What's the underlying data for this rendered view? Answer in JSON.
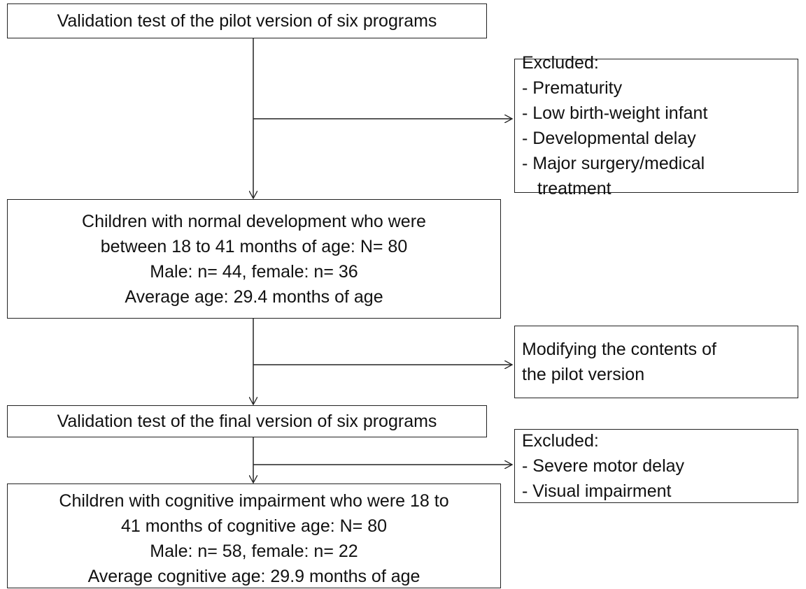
{
  "nodes": [
    {
      "lines": [
        "Validation test of the pilot version of six programs"
      ]
    },
    {
      "lines": [
        "Excluded:",
        "- Prematurity",
        "- Low birth-weight infant",
        "- Developmental delay",
        "- Major surgery/medical",
        "treatment"
      ]
    },
    {
      "lines": [
        "Children with normal development who were",
        "between 18 to 41 months of age: N= 80",
        "Male: n= 44, female: n= 36",
        "Average age: 29.4 months of age"
      ]
    },
    {
      "lines": [
        "Modifying the contents of",
        "the pilot version"
      ]
    },
    {
      "lines": [
        "Validation test of the final version of six programs"
      ]
    },
    {
      "lines": [
        "Excluded:",
        "- Severe motor delay",
        "- Visual impairment"
      ]
    },
    {
      "lines": [
        "Children with cognitive impairment who were 18 to",
        "41 months of cognitive age: N= 80",
        "Male: n= 58, female: n= 22",
        "Average cognitive age: 29.9 months of age"
      ]
    }
  ]
}
